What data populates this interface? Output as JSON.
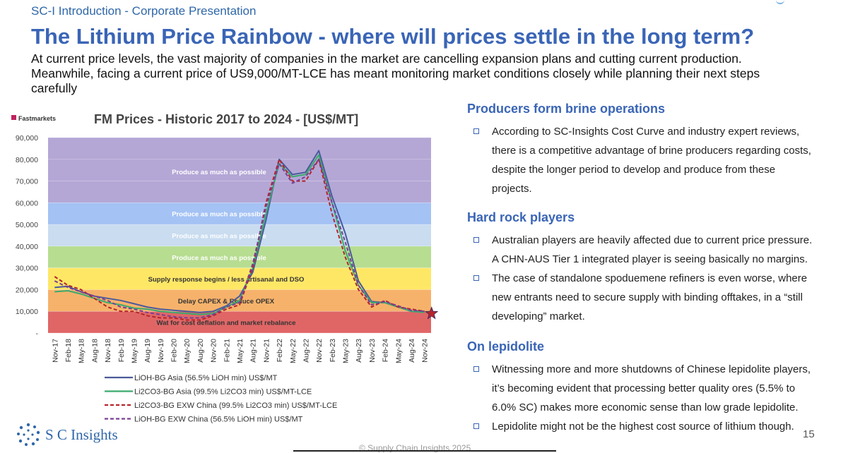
{
  "header": {
    "breadcrumb": "SC-I Introduction - Corporate Presentation"
  },
  "slide": {
    "title": "The Lithium Price Rainbow - where will prices settle in the long term?",
    "subtitle_lines": [
      "At current price levels, the vast majority of companies in the market are cancelling expansion plans and cutting current production.",
      "Meanwhile, facing a current price of US9,000/MT-LCE has meant monitoring market conditions closely while planning their next steps",
      "carefully"
    ]
  },
  "chart_data": {
    "type": "line",
    "source_logo": "Fastmarkets",
    "title": "FM Prices - Historic 2017 to 2024 - [US$/MT]",
    "xlabel": "",
    "ylabel": "",
    "ylim": [
      0,
      90000
    ],
    "y_ticks": [
      0,
      10000,
      20000,
      30000,
      40000,
      50000,
      60000,
      70000,
      80000,
      90000
    ],
    "y_tick_labels": [
      "-",
      "10,000",
      "20,000",
      "30,000",
      "40,000",
      "50,000",
      "60,000",
      "70,000",
      "80,000",
      "90,000"
    ],
    "x_tick_labels": [
      "Nov-17",
      "Feb-18",
      "May-18",
      "Aug-18",
      "Nov-18",
      "Feb-19",
      "May-19",
      "Aug-19",
      "Nov-19",
      "Feb-20",
      "May-20",
      "Aug-20",
      "Nov-20",
      "Feb-21",
      "May-21",
      "Aug-21",
      "Nov-21",
      "Feb-22",
      "May-22",
      "Aug-22",
      "Nov-22",
      "Feb-23",
      "May-23",
      "Aug-23",
      "Nov-23",
      "Feb-24",
      "May-24",
      "Aug-24",
      "Nov-24"
    ],
    "bands": [
      {
        "from": 0,
        "to": 10000,
        "color": "#e06666",
        "label": "Wat for cost deflation and market rebalance"
      },
      {
        "from": 10000,
        "to": 20000,
        "color": "#f6b26b",
        "label": "Delay CAPEX & Reduce OPEX"
      },
      {
        "from": 20000,
        "to": 30000,
        "color": "#ffe766",
        "label": "Supply response begins / less artisanal and DSO"
      },
      {
        "from": 30000,
        "to": 40000,
        "color": "#b7dd91",
        "label": "Produce as much as possible"
      },
      {
        "from": 40000,
        "to": 50000,
        "color": "#c9dcf0",
        "label": "Produce as much as possible"
      },
      {
        "from": 50000,
        "to": 60000,
        "color": "#a4c2f4",
        "label": "Produce as much as possible"
      },
      {
        "from": 60000,
        "to": 90000,
        "color": "#b4a7d6",
        "label": "Produce as much as possible"
      }
    ],
    "series": [
      {
        "name": "LiOH-BG Asia (56.5% LiOH min) US$/MT",
        "color": "#4a5a9c",
        "dash": "solid",
        "values": [
          21000,
          21500,
          19000,
          17000,
          16000,
          15000,
          13500,
          12000,
          11000,
          10500,
          10000,
          9500,
          10000,
          12500,
          17000,
          28000,
          52000,
          80000,
          73000,
          74000,
          84000,
          63000,
          46000,
          24000,
          14500,
          14000,
          12000,
          10000,
          10000
        ]
      },
      {
        "name": "Li2CO3-BG Asia (99.5% Li2CO3 min) US$/MT-LCE",
        "color": "#3aaa6e",
        "dash": "solid",
        "values": [
          19000,
          19500,
          18000,
          16000,
          14000,
          13000,
          11500,
          11000,
          10000,
          9500,
          9000,
          8500,
          9000,
          12000,
          15000,
          30000,
          55000,
          78000,
          72000,
          73000,
          82000,
          60000,
          38000,
          22000,
          14000,
          14000,
          12000,
          10000,
          9500
        ]
      },
      {
        "name": "Li2CO3-BG EXW China (99.5% Li2CO3 min) US$/MT-LCE",
        "color": "#b5252b",
        "dash": "dashed",
        "values": [
          26000,
          22000,
          20000,
          16000,
          12000,
          10000,
          10000,
          8000,
          7000,
          7000,
          6000,
          6000,
          8000,
          11000,
          13000,
          30000,
          60000,
          80000,
          70000,
          70000,
          80000,
          55000,
          35000,
          20000,
          12000,
          15000,
          12000,
          11000,
          10000
        ]
      },
      {
        "name": "LiOH-BG EXW China (56.5% LiOH min) US$/MT",
        "color": "#7a3f95",
        "dash": "dashed",
        "values": [
          24000,
          21000,
          19000,
          17000,
          15000,
          12000,
          11000,
          9500,
          8500,
          7500,
          7000,
          7000,
          8500,
          12000,
          14000,
          32000,
          58000,
          78000,
          69000,
          72000,
          80000,
          60000,
          42000,
          22000,
          13000,
          14500,
          12500,
          10500,
          10000
        ]
      }
    ],
    "current_marker": {
      "x": "Nov-24",
      "y": 9000,
      "color": "#b5252b",
      "shape": "star"
    }
  },
  "sections": [
    {
      "title": "Producers form brine operations",
      "bullets": [
        [
          "According to SC-Insights Cost Curve and industry expert reviews,",
          "there is a competitive advantage of brine producers regarding costs,",
          "despite the longer period to develop and produce from these",
          "projects."
        ]
      ]
    },
    {
      "title": "Hard rock players",
      "bullets": [
        [
          "Australian players are heavily affected due to current price pressure.",
          "A CHN-AUS Tier 1 integrated player is seeing basically no margins."
        ],
        [
          "The case of standalone spoduemene refiners is even worse, where",
          "new entrants need to secure supply with binding offtakes, in a “still",
          "developing” market."
        ]
      ]
    },
    {
      "title": "On lepidolite",
      "bullets": [
        [
          "Witnessing more and more shutdowns of Chinese lepidolite players,",
          "it’s becoming evident that processing better quality ores (5.5% to",
          "6.0% SC) makes more economic sense than low grade lepidolite."
        ],
        [
          "Lepidolite might not be the highest cost source of lithium though."
        ]
      ]
    }
  ],
  "footer": {
    "logo_text": "S C Insights",
    "copyright": "© Supply Chain Insights 2025",
    "page_number": "15"
  }
}
